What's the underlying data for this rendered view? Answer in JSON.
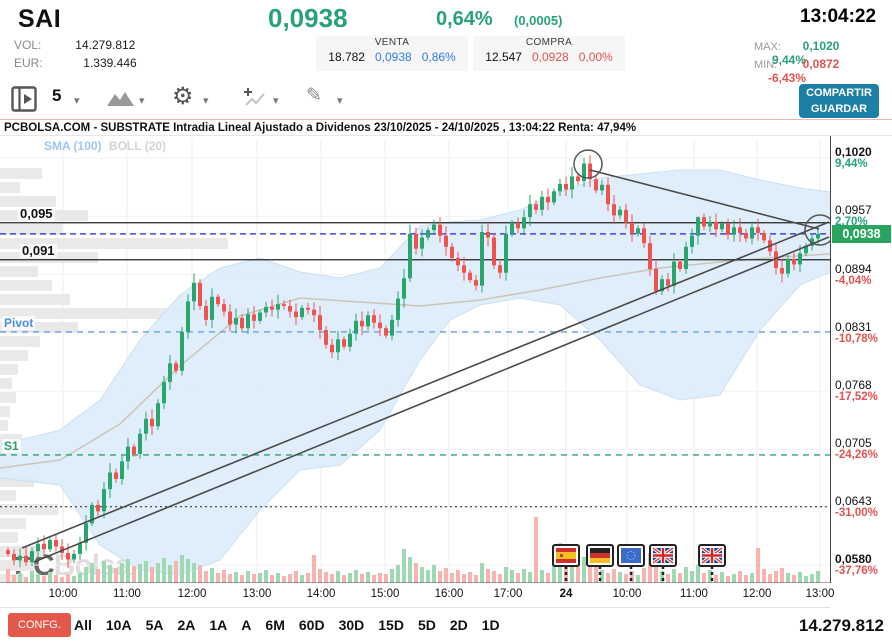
{
  "header": {
    "symbol": "SAI",
    "price": "0,0938",
    "change_pct": "0,64%",
    "change_abs": "(0,0005)",
    "clock": "13:04:22",
    "vol_label": "VOL:",
    "vol_value": "14.279.812",
    "eur_label": "EUR:",
    "eur_value": "1.339.446",
    "venta": {
      "label": "VENTA",
      "volume": "18.782",
      "price": "0,0938",
      "pct": "0,86%"
    },
    "compra": {
      "label": "COMPRA",
      "volume": "12.547",
      "price": "0,0928",
      "pct": "0,00%"
    },
    "max": {
      "label": "MAX:",
      "price": "0,1020",
      "pct": "9,44%"
    },
    "min": {
      "label": "MIN:",
      "price": "0,0872",
      "pct": "-6,43%"
    }
  },
  "toolbar": {
    "interval": "5",
    "icons": [
      "panel-toggle",
      "interval-select",
      "chart-type-mountain",
      "settings-gear",
      "add-indicator",
      "draw-tools"
    ],
    "share_label": "COMPARTIR",
    "save_label": "GUARDAR"
  },
  "chart_title": "PCBOLSA.COM - SUBSTRATE Intradia Lineal Ajustado a Dividenos 23/10/2025 - 24/10/2025 , 13:04:22 Renta: 47,94%",
  "legend": {
    "sma": "SMA (100)",
    "boll": "BOLL (20)"
  },
  "watermark": {
    "pc": "PC",
    "bolsa": "Bolsa"
  },
  "footer": {
    "confg": "CONFG.",
    "timeframes": [
      "All",
      "10A",
      "5A",
      "2A",
      "1A",
      "A",
      "6M",
      "60D",
      "30D",
      "15D",
      "5D",
      "2D",
      "1D"
    ],
    "total_volume": "14.279.812"
  },
  "colors": {
    "green": "#27a277",
    "red": "#e25250",
    "blue": "#2f7de0",
    "candle_up": "#2aa56d",
    "candle_down": "#ef5350",
    "vol_up": "#9fd9b4",
    "vol_down": "#f6b3af",
    "band": "#dcecf9",
    "band_edge": "#c9e0f4",
    "sma": "#cdc5b8",
    "badge": "#2aa560",
    "share_button": "#1b7fa6",
    "confg_button": "#e2594b"
  },
  "chart_data": {
    "type": "candlestick",
    "title": "SAI intraday 5-min, 23/10/2025 - 24/10/2025",
    "ylim": [
      0.058,
      0.102
    ],
    "current_price": 0.0938,
    "layout": {
      "y_top": 158,
      "y_bottom": 565,
      "p_min": 0.058,
      "p_max": 0.102
    },
    "x0": 8,
    "dx": 6,
    "open0": 0.0596,
    "closes": [
      0.0592,
      0.0585,
      0.059,
      0.0583,
      0.0595,
      0.0603,
      0.0597,
      0.0607,
      0.06,
      0.0593,
      0.0586,
      0.0592,
      0.0604,
      0.0625,
      0.0645,
      0.0638,
      0.0662,
      0.068,
      0.0673,
      0.0692,
      0.0708,
      0.07,
      0.0722,
      0.0738,
      0.073,
      0.0755,
      0.0778,
      0.0798,
      0.079,
      0.0832,
      0.0865,
      0.0885,
      0.086,
      0.0845,
      0.087,
      0.0862,
      0.0854,
      0.084,
      0.0847,
      0.0836,
      0.0851,
      0.0844,
      0.0853,
      0.0859,
      0.0856,
      0.0862,
      0.086,
      0.0854,
      0.0848,
      0.0858,
      0.0856,
      0.085,
      0.0834,
      0.0818,
      0.081,
      0.0824,
      0.0816,
      0.083,
      0.0844,
      0.0838,
      0.085,
      0.0842,
      0.0836,
      0.0828,
      0.0845,
      0.0868,
      0.089,
      0.0938,
      0.0922,
      0.0934,
      0.0942,
      0.0948,
      0.0936,
      0.0924,
      0.0912,
      0.0904,
      0.0896,
      0.0888,
      0.0882,
      0.094,
      0.0934,
      0.0904,
      0.0896,
      0.0938,
      0.095,
      0.0944,
      0.0956,
      0.097,
      0.0964,
      0.0978,
      0.0972,
      0.0984,
      0.0992,
      0.0986,
      0.1,
      0.0995,
      0.1014,
      0.0997,
      0.0985,
      0.0991,
      0.097,
      0.0958,
      0.0964,
      0.095,
      0.0938,
      0.0944,
      0.0928,
      0.09,
      0.0876,
      0.0889,
      0.0882,
      0.0908,
      0.09,
      0.0924,
      0.0936,
      0.0956,
      0.0946,
      0.0951,
      0.0943,
      0.0949,
      0.0937,
      0.0945,
      0.0939,
      0.0933,
      0.0945,
      0.0939,
      0.0931,
      0.0919,
      0.0901,
      0.0895,
      0.0911,
      0.0905,
      0.0917,
      0.0925,
      0.0933,
      0.0938
    ],
    "volumes": [
      14,
      8,
      10,
      6,
      12,
      9,
      7,
      11,
      8,
      6,
      9,
      7,
      10,
      16,
      20,
      14,
      22,
      18,
      15,
      20,
      24,
      17,
      19,
      22,
      16,
      20,
      25,
      18,
      22,
      28,
      24,
      20,
      18,
      12,
      15,
      10,
      13,
      9,
      11,
      8,
      12,
      9,
      10,
      13,
      8,
      10,
      7,
      9,
      12,
      8,
      10,
      28,
      14,
      11,
      9,
      12,
      8,
      10,
      13,
      9,
      11,
      8,
      10,
      9,
      14,
      18,
      34,
      26,
      20,
      16,
      13,
      18,
      12,
      15,
      10,
      13,
      9,
      11,
      8,
      20,
      14,
      12,
      9,
      16,
      13,
      10,
      14,
      11,
      66,
      13,
      10,
      22,
      40,
      30,
      24,
      28,
      26,
      20,
      16,
      13,
      10,
      14,
      11,
      9,
      12,
      8,
      15,
      30,
      22,
      12,
      9,
      14,
      10,
      16,
      12,
      18,
      10,
      13,
      8,
      11,
      7,
      9,
      12,
      8,
      10,
      35,
      14,
      9,
      12,
      15,
      10,
      8,
      11,
      7,
      9,
      12
    ],
    "wick_hi": {
      "67": 0.0948,
      "96": 0.102,
      "115": 0.0957
    },
    "wick_lo": {
      "3": 0.0579,
      "108": 0.0872
    },
    "x_ticks": [
      {
        "x": 63,
        "label": "10:00"
      },
      {
        "x": 127,
        "label": "11:00"
      },
      {
        "x": 192,
        "label": "12:00"
      },
      {
        "x": 257,
        "label": "13:00"
      },
      {
        "x": 321,
        "label": "14:00"
      },
      {
        "x": 385,
        "label": "15:00"
      },
      {
        "x": 449,
        "label": "16:00"
      },
      {
        "x": 508,
        "label": "17:00"
      },
      {
        "x": 566,
        "label": "24",
        "bold": true
      },
      {
        "x": 627,
        "label": "10:00"
      },
      {
        "x": 694,
        "label": "11:00"
      },
      {
        "x": 757,
        "label": "12:00"
      },
      {
        "x": 820,
        "label": "13:00"
      }
    ],
    "right_axis": [
      {
        "p": 0.102,
        "price": "0,1020",
        "pct": "9,44%",
        "dir": "up",
        "bold": true
      },
      {
        "p": 0.0957,
        "price": "0,0957",
        "pct": "2,70%",
        "dir": "up"
      },
      {
        "p": 0.0894,
        "price": "0,0894",
        "pct": "-4,04%",
        "dir": "down"
      },
      {
        "p": 0.0831,
        "price": "0,0831",
        "pct": "-10,78%",
        "dir": "down"
      },
      {
        "p": 0.0768,
        "price": "0,0768",
        "pct": "-17,52%",
        "dir": "down"
      },
      {
        "p": 0.0705,
        "price": "0,0705",
        "pct": "-24,26%",
        "dir": "down"
      },
      {
        "p": 0.0643,
        "price": "0,0643",
        "pct": "-31,00%",
        "dir": "down"
      },
      {
        "p": 0.058,
        "price": "0,0580",
        "pct": "-37,76%",
        "dir": "down",
        "bold": true
      }
    ],
    "badge": {
      "p": 0.0938,
      "text": "0,0938"
    },
    "lines": [
      {
        "p": 0.095,
        "style": "solid"
      },
      {
        "p": 0.091,
        "style": "solid"
      },
      {
        "p": 0.0938,
        "style": "dashed-blue"
      },
      {
        "p": 0.0832,
        "style": "dashed-pivot"
      },
      {
        "p": 0.0699,
        "style": "dashed-green"
      },
      {
        "p": 0.0643,
        "style": "dotted"
      }
    ],
    "left_labels": [
      {
        "p": 0.095,
        "text": "0,095",
        "color": "#111111",
        "size": 13,
        "left": 18
      },
      {
        "p": 0.091,
        "text": "0,091",
        "color": "#111111",
        "size": 13,
        "left": 20
      },
      {
        "p": 0.0832,
        "text": "Pivot",
        "color": "#4a90e2",
        "size": 12,
        "left": 2
      },
      {
        "p": 0.0699,
        "text": "S1",
        "color": "#2e9e68",
        "size": 12,
        "left": 2
      }
    ],
    "band": {
      "x": [
        0,
        60,
        100,
        140,
        180,
        220,
        260,
        300,
        340,
        380,
        420,
        450,
        480,
        520,
        560,
        600,
        640,
        680,
        720,
        760,
        800,
        830
      ],
      "top": [
        445,
        430,
        400,
        340,
        295,
        268,
        258,
        272,
        278,
        268,
        226,
        222,
        220,
        210,
        192,
        178,
        174,
        170,
        170,
        180,
        188,
        192
      ],
      "bottom": [
        478,
        485,
        545,
        570,
        575,
        560,
        510,
        470,
        465,
        430,
        360,
        320,
        305,
        298,
        305,
        340,
        385,
        400,
        395,
        330,
        285,
        272
      ]
    },
    "sma": [
      [
        0,
        468
      ],
      [
        60,
        460
      ],
      [
        120,
        424
      ],
      [
        180,
        366
      ],
      [
        240,
        316
      ],
      [
        300,
        298
      ],
      [
        360,
        302
      ],
      [
        420,
        306
      ],
      [
        480,
        300
      ],
      [
        540,
        290
      ],
      [
        600,
        278
      ],
      [
        660,
        268
      ],
      [
        720,
        262
      ],
      [
        780,
        257
      ],
      [
        830,
        254
      ]
    ],
    "profile": [
      [
        168,
        42
      ],
      [
        182,
        20
      ],
      [
        196,
        56
      ],
      [
        210,
        88
      ],
      [
        224,
        62
      ],
      [
        238,
        228
      ],
      [
        252,
        98
      ],
      [
        266,
        38
      ],
      [
        280,
        52
      ],
      [
        294,
        70
      ],
      [
        308,
        250
      ],
      [
        322,
        78
      ],
      [
        336,
        40
      ],
      [
        350,
        28
      ],
      [
        364,
        18
      ],
      [
        378,
        12
      ],
      [
        392,
        16
      ],
      [
        406,
        10
      ],
      [
        420,
        8
      ],
      [
        434,
        22
      ],
      [
        448,
        10
      ],
      [
        462,
        12
      ],
      [
        476,
        34
      ],
      [
        490,
        16
      ],
      [
        504,
        58
      ],
      [
        518,
        26
      ],
      [
        532,
        18
      ],
      [
        546,
        44
      ],
      [
        560,
        34
      ],
      [
        574,
        24
      ]
    ],
    "trendlines": [
      {
        "x1": 22,
        "y1": 548,
        "x2": 829,
        "y2": 222
      },
      {
        "x1": 34,
        "y1": 562,
        "x2": 829,
        "y2": 237
      },
      {
        "x1": 590,
        "y1": 170,
        "x2": 819,
        "y2": 229
      }
    ],
    "circles": [
      {
        "cx": 588,
        "cy": 164,
        "r": 14
      },
      {
        "cx": 820,
        "cy": 230,
        "r": 15
      }
    ],
    "flags": [
      {
        "x": 566,
        "type": "es"
      },
      {
        "x": 600,
        "type": "de"
      },
      {
        "x": 631,
        "type": "eu"
      },
      {
        "x": 663,
        "type": "uk"
      },
      {
        "x": 712,
        "type": "uk"
      }
    ]
  }
}
